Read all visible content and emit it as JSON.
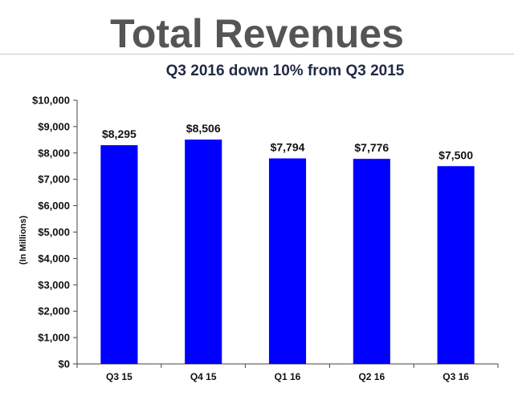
{
  "chart_data": {
    "type": "bar",
    "title": "Total Revenues",
    "subtitle": "Q3 2016 down 10% from Q3 2015",
    "xlabel": "",
    "ylabel": "(In Millions)",
    "categories": [
      "Q3 15",
      "Q4 15",
      "Q1 16",
      "Q2 16",
      "Q3 16"
    ],
    "values": [
      8295,
      8506,
      7794,
      7776,
      7500
    ],
    "data_labels": [
      "$8,295",
      "$8,506",
      "$7,794",
      "$7,776",
      "$7,500"
    ],
    "ylim": [
      0,
      10000
    ],
    "y_ticks": [
      0,
      1000,
      2000,
      3000,
      4000,
      5000,
      6000,
      7000,
      8000,
      9000,
      10000
    ],
    "y_tick_labels": [
      "$0",
      "$1,000",
      "$2,000",
      "$3,000",
      "$4,000",
      "$5,000",
      "$6,000",
      "$7,000",
      "$8,000",
      "$9,000",
      "$10,000"
    ],
    "bar_color": "#0000ff",
    "grid": false,
    "legend": "none"
  }
}
